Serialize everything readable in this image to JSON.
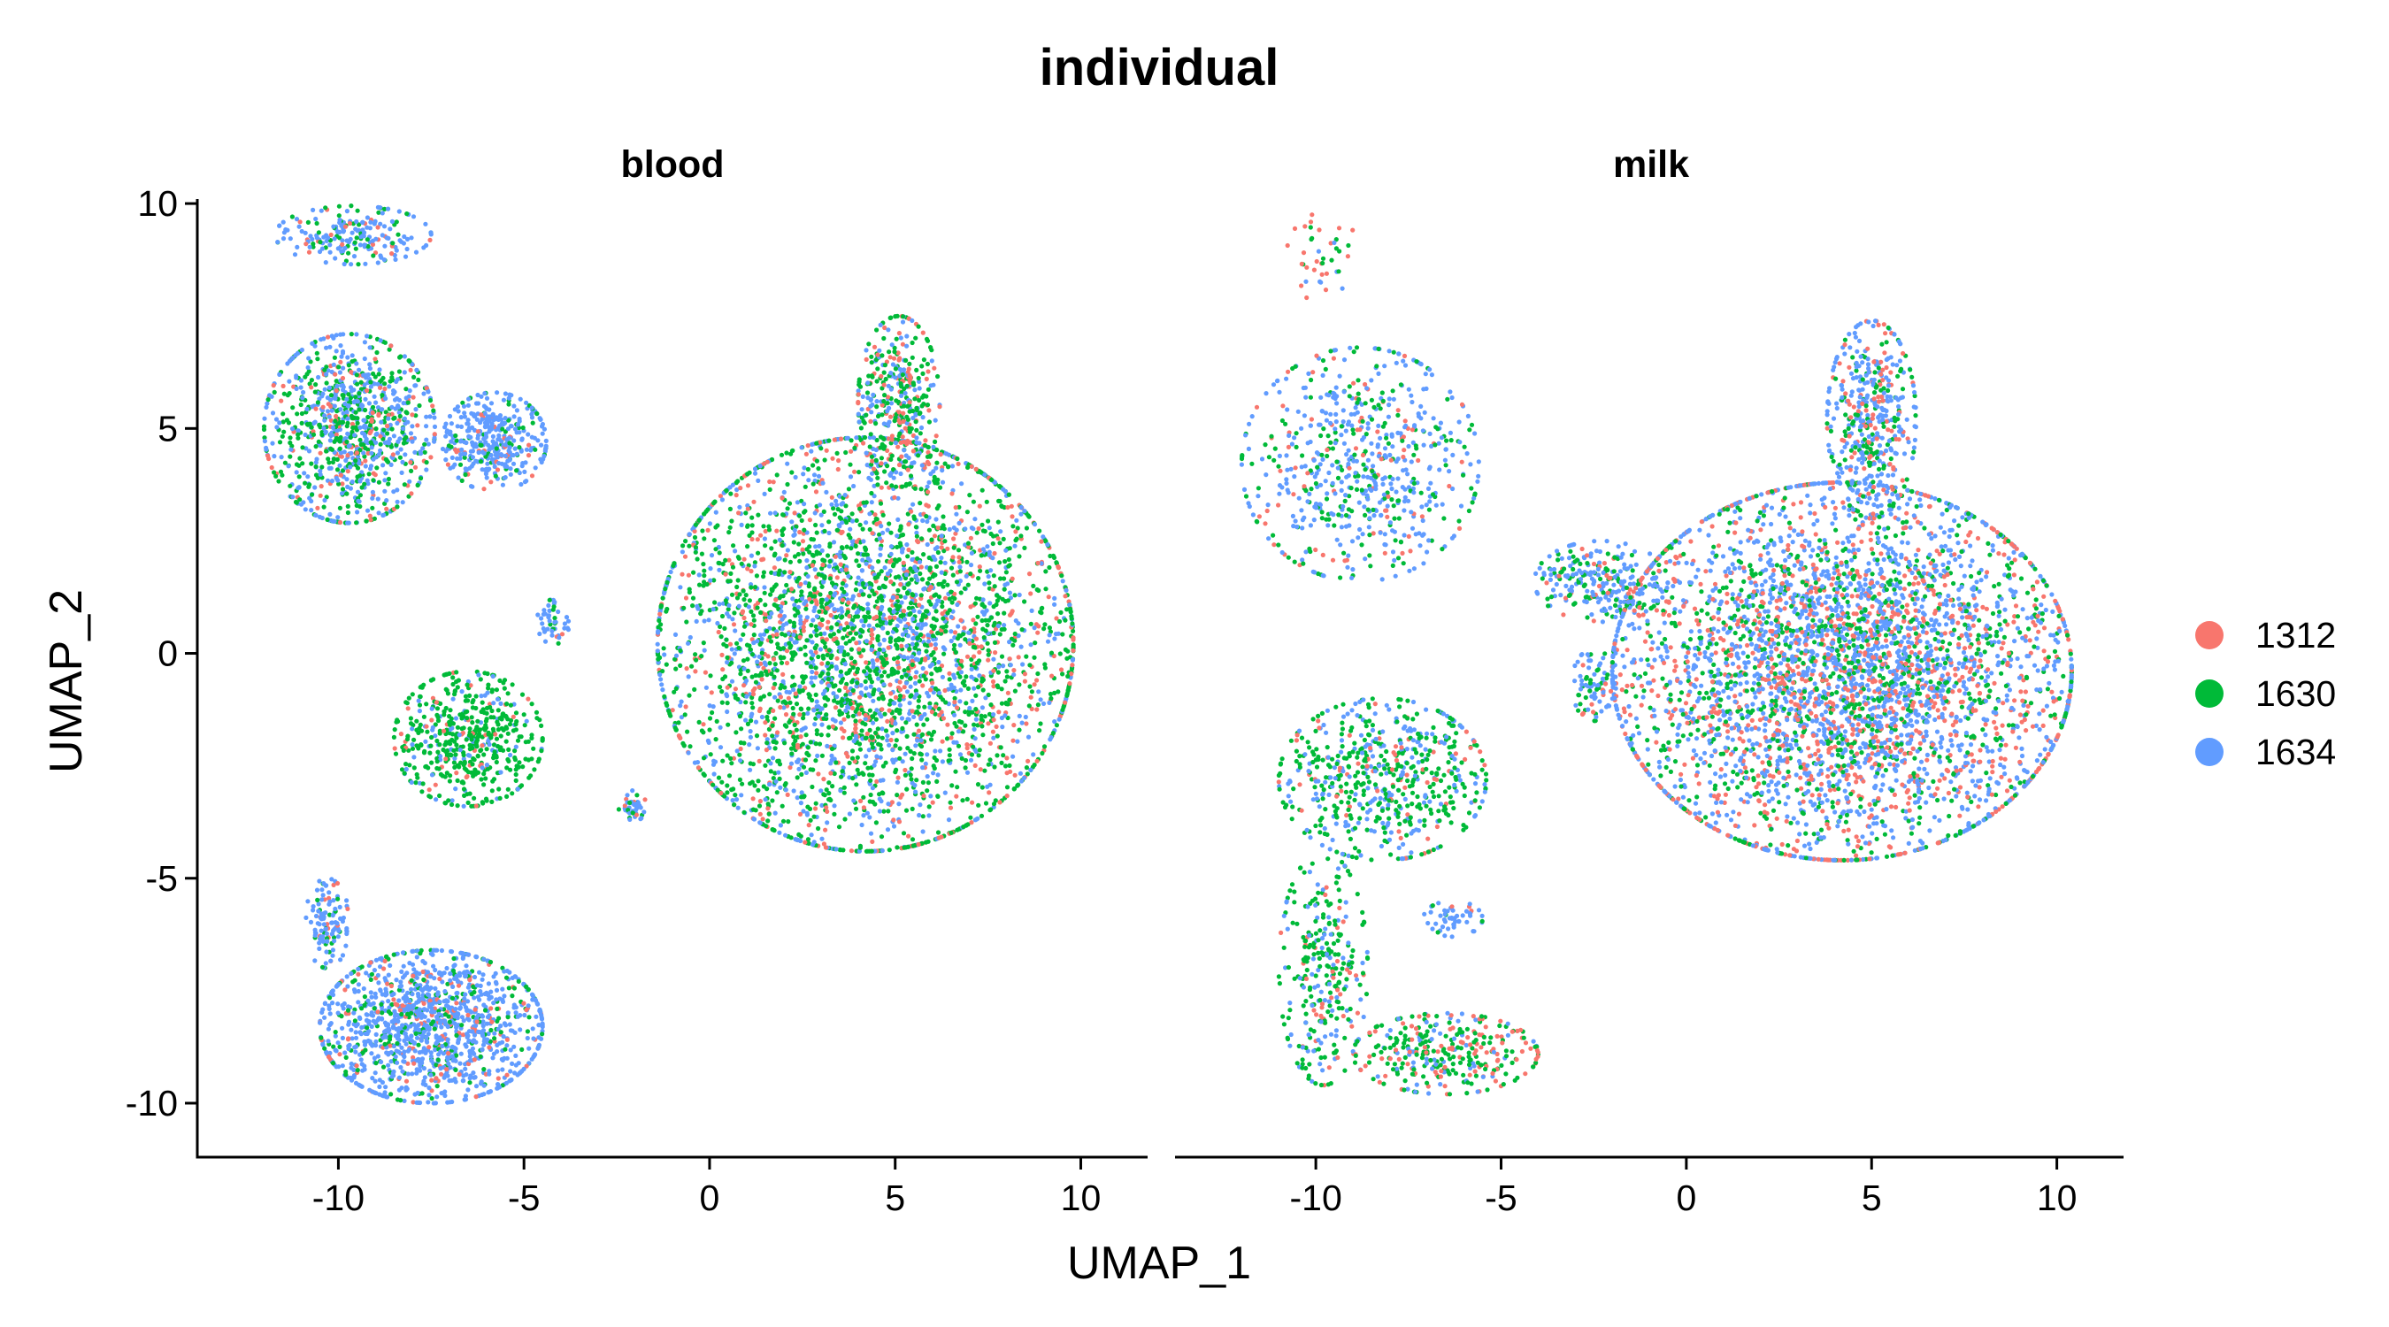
{
  "chart_data": {
    "type": "scatter",
    "title": "individual",
    "xlabel": "UMAP_1",
    "ylabel": "UMAP_2",
    "xlim": [
      -13.8,
      11.8
    ],
    "ylim": [
      -11.2,
      10.1
    ],
    "x_ticks": [
      -10,
      -5,
      0,
      5,
      10
    ],
    "y_ticks": [
      10,
      5,
      0,
      -5,
      -10
    ],
    "x_tick_labels": [
      "-10",
      "-5",
      "0",
      "5",
      "10"
    ],
    "y_tick_labels": [
      "10",
      "5",
      "0",
      "-5",
      "-10"
    ],
    "grid": false,
    "legend_position": "right",
    "legend_title": "",
    "series": [
      {
        "name": "1312",
        "color": "#F8766D"
      },
      {
        "name": "1630",
        "color": "#00BA38"
      },
      {
        "name": "1634",
        "color": "#619CFF"
      }
    ],
    "panels": [
      {
        "name": "blood",
        "clusters": [
          {
            "cx": -9.6,
            "cy": 9.3,
            "rx": 2.1,
            "ry": 0.65,
            "n": 200,
            "weights": [
              0.08,
              0.22,
              0.7
            ]
          },
          {
            "cx": -9.7,
            "cy": 5.0,
            "rx": 2.3,
            "ry": 2.1,
            "n": 950,
            "weights": [
              0.12,
              0.4,
              0.48
            ]
          },
          {
            "cx": -5.8,
            "cy": 4.7,
            "rx": 1.4,
            "ry": 1.1,
            "n": 380,
            "weights": [
              0.08,
              0.12,
              0.8
            ]
          },
          {
            "cx": 4.2,
            "cy": 0.2,
            "rx": 5.6,
            "ry": 4.6,
            "n": 3700,
            "weights": [
              0.17,
              0.52,
              0.31
            ]
          },
          {
            "cx": 5.1,
            "cy": 5.6,
            "rx": 1.1,
            "ry": 1.9,
            "n": 380,
            "weights": [
              0.22,
              0.5,
              0.28
            ]
          },
          {
            "cx": -6.5,
            "cy": -1.9,
            "rx": 2.0,
            "ry": 1.5,
            "n": 520,
            "weights": [
              0.06,
              0.8,
              0.14
            ]
          },
          {
            "cx": -4.2,
            "cy": 0.7,
            "rx": 0.45,
            "ry": 0.5,
            "n": 45,
            "weights": [
              0.05,
              0.15,
              0.8
            ]
          },
          {
            "cx": -2.1,
            "cy": -3.4,
            "rx": 0.4,
            "ry": 0.35,
            "n": 40,
            "weights": [
              0.1,
              0.2,
              0.7
            ]
          },
          {
            "cx": -7.5,
            "cy": -8.3,
            "rx": 3.0,
            "ry": 1.7,
            "n": 1300,
            "weights": [
              0.1,
              0.15,
              0.75
            ]
          },
          {
            "cx": -10.3,
            "cy": -6.0,
            "rx": 0.6,
            "ry": 1.0,
            "n": 120,
            "weights": [
              0.1,
              0.15,
              0.75
            ]
          }
        ]
      },
      {
        "name": "milk",
        "clusters": [
          {
            "cx": -8.8,
            "cy": 4.2,
            "rx": 3.2,
            "ry": 2.6,
            "n": 650,
            "weights": [
              0.12,
              0.28,
              0.6
            ]
          },
          {
            "cx": -9.8,
            "cy": 8.8,
            "rx": 1.0,
            "ry": 1.0,
            "n": 40,
            "weights": [
              0.4,
              0.4,
              0.2
            ]
          },
          {
            "cx": -2.3,
            "cy": 1.6,
            "rx": 1.8,
            "ry": 0.9,
            "n": 260,
            "weights": [
              0.1,
              0.35,
              0.55
            ]
          },
          {
            "cx": 4.2,
            "cy": -0.4,
            "rx": 6.2,
            "ry": 4.2,
            "n": 4200,
            "weights": [
              0.27,
              0.23,
              0.5
            ]
          },
          {
            "cx": 5.0,
            "cy": 5.2,
            "rx": 1.2,
            "ry": 2.2,
            "n": 450,
            "weights": [
              0.2,
              0.25,
              0.55
            ]
          },
          {
            "cx": -8.2,
            "cy": -2.8,
            "rx": 2.8,
            "ry": 1.8,
            "n": 600,
            "weights": [
              0.1,
              0.55,
              0.35
            ]
          },
          {
            "cx": -9.8,
            "cy": -7.0,
            "rx": 1.2,
            "ry": 2.6,
            "n": 300,
            "weights": [
              0.12,
              0.6,
              0.28
            ]
          },
          {
            "cx": -6.5,
            "cy": -8.9,
            "rx": 2.5,
            "ry": 0.9,
            "n": 320,
            "weights": [
              0.3,
              0.55,
              0.15
            ]
          },
          {
            "cx": -6.3,
            "cy": -5.9,
            "rx": 0.8,
            "ry": 0.4,
            "n": 50,
            "weights": [
              0.05,
              0.1,
              0.85
            ]
          },
          {
            "cx": -2.5,
            "cy": -0.7,
            "rx": 0.6,
            "ry": 0.8,
            "n": 80,
            "weights": [
              0.15,
              0.3,
              0.55
            ]
          }
        ]
      }
    ]
  }
}
